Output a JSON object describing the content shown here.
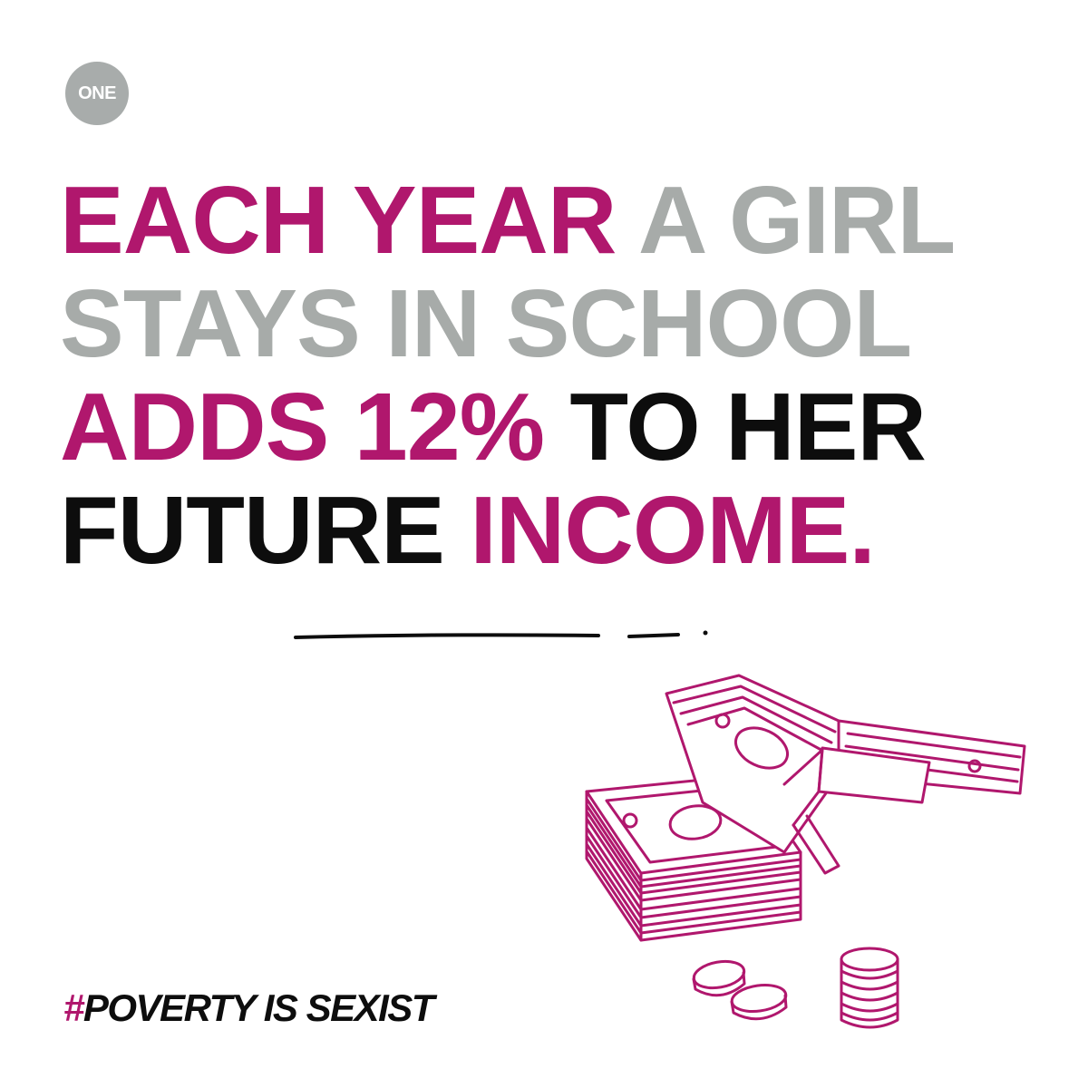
{
  "logo": {
    "text": "ONE"
  },
  "headline": {
    "line1": {
      "part1": "EACH YEAR",
      "part2": "A GIRL"
    },
    "line2": {
      "part1": "STAYS IN SCHOOL"
    },
    "line3": {
      "part1": "ADDS 12%",
      "part2": "TO HER"
    },
    "line4": {
      "part1": "FUTURE",
      "part2": "INCOME."
    }
  },
  "hashtag": {
    "hash": "#",
    "text": "POVERTY IS SEXIST"
  },
  "colors": {
    "accent_pink": "#b0176d",
    "grey": "#a7aba9",
    "black": "#0d0d0d",
    "background": "#ffffff"
  },
  "icons": {
    "illustration": "money-stack-coins-icon",
    "logo": "one-logo-icon"
  }
}
